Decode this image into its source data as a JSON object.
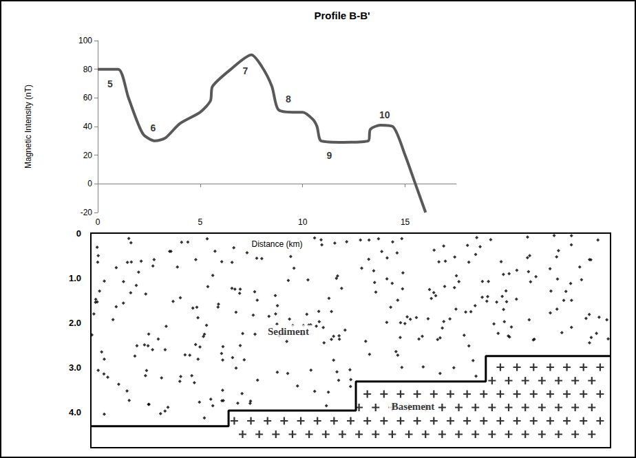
{
  "chart_data": [
    {
      "type": "line",
      "title": "Profile B-B'",
      "xlabel": "Distance (km)",
      "ylabel": "Magnetic Intensity (nT)",
      "x": [
        0,
        1,
        1.5,
        2.2,
        2.8,
        3.3,
        4,
        5,
        5.5,
        5.6,
        6.5,
        7.5,
        8,
        8.5,
        8.8,
        9.5,
        10,
        10.5,
        10.7,
        10.9,
        12,
        13.2,
        13.3,
        13.8,
        14.4,
        15,
        15.5,
        16
      ],
      "values": [
        80,
        80,
        60,
        35,
        30,
        32,
        42,
        50,
        58,
        68,
        80,
        90,
        82,
        68,
        52,
        50,
        50,
        45,
        40,
        30,
        29,
        30,
        38,
        41,
        40,
        20,
        0,
        -20
      ],
      "color": "#595959",
      "xlim": [
        0,
        17.5
      ],
      "xticks": [
        0,
        5,
        10,
        15
      ],
      "ylim": [
        -20,
        100
      ],
      "yticks": [
        -20,
        0,
        20,
        40,
        60,
        80,
        100
      ],
      "grid": false,
      "annotations": [
        {
          "text": "5",
          "x": 0.6,
          "y": 70
        },
        {
          "text": "6",
          "x": 2.7,
          "y": 39
        },
        {
          "text": "7",
          "x": 7.2,
          "y": 79
        },
        {
          "text": "8",
          "x": 9.3,
          "y": 59
        },
        {
          "text": "9",
          "x": 11.3,
          "y": 20
        },
        {
          "text": "10",
          "x": 14.0,
          "y": 48
        }
      ]
    },
    {
      "type": "line",
      "line_style": "step",
      "x": [
        0,
        26.5,
        51,
        76,
        100
      ],
      "values": [
        4.32,
        3.97,
        3.32,
        2.75,
        2.75
      ],
      "color": "#000000",
      "xlim": [
        0,
        100
      ],
      "ylim": [
        4.8,
        0
      ],
      "yticks": [
        0,
        {
          "value": 1,
          "label": "1.0"
        },
        {
          "value": 2,
          "label": "2.0"
        },
        {
          "value": 3,
          "label": "3.0"
        },
        {
          "value": 4,
          "label": "4.0"
        }
      ],
      "tick_labels": "y",
      "grid": false,
      "annotations": [
        {
          "text": "Sediment",
          "x": 38,
          "y": 2.2
        },
        {
          "text": "Basement",
          "x": 62,
          "y": 3.88
        }
      ]
    }
  ]
}
